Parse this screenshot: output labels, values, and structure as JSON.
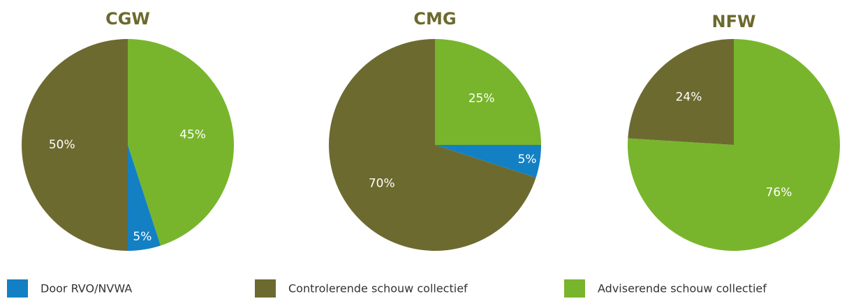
{
  "legend": [
    {
      "name": "Door RVO/NVWA",
      "color": "#1380c4"
    },
    {
      "name": "Controlerende schouw collectief",
      "color": "#6d6a30"
    },
    {
      "name": "Adviserende schouw collectief",
      "color": "#78b52c"
    }
  ],
  "chart_data": [
    {
      "type": "pie",
      "title": "CGW",
      "categories": [
        "Adviserende schouw collectief",
        "Door RVO/NVWA",
        "Controlerende schouw collectief"
      ],
      "values": [
        45,
        5,
        50
      ],
      "value_labels": [
        "45%",
        "5%",
        "50%"
      ],
      "colors": [
        "#78b52c",
        "#1380c4",
        "#6d6a30"
      ]
    },
    {
      "type": "pie",
      "title": "CMG",
      "categories": [
        "Adviserende schouw collectief",
        "Door RVO/NVWA",
        "Controlerende schouw collectief"
      ],
      "values": [
        25,
        5,
        70
      ],
      "value_labels": [
        "25%",
        "5%",
        "70%"
      ],
      "colors": [
        "#78b52c",
        "#1380c4",
        "#6d6a30"
      ]
    },
    {
      "type": "pie",
      "title": "NFW",
      "categories": [
        "Adviserende schouw collectief",
        "Controlerende schouw collectief"
      ],
      "values": [
        76,
        24
      ],
      "value_labels": [
        "76%",
        "24%"
      ],
      "colors": [
        "#78b52c",
        "#6d6a30"
      ]
    }
  ]
}
